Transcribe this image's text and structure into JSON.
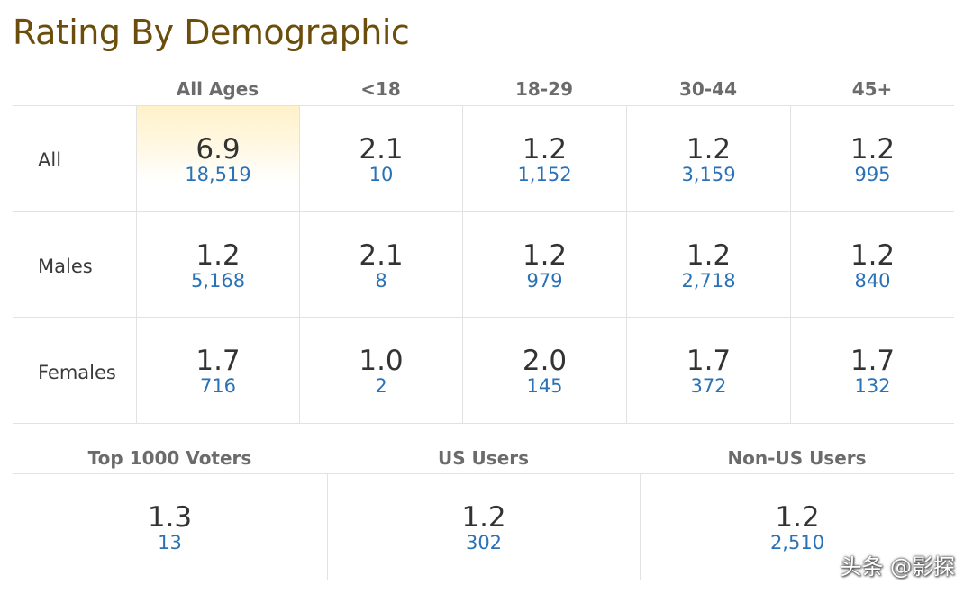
{
  "title": "Rating By Demographic",
  "age_headers": [
    "All Ages",
    "<18",
    "18-29",
    "30-44",
    "45+"
  ],
  "rows": [
    {
      "label": "All",
      "cells": [
        {
          "rating": "6.9",
          "votes": "18,519"
        },
        {
          "rating": "2.1",
          "votes": "10"
        },
        {
          "rating": "1.2",
          "votes": "1,152"
        },
        {
          "rating": "1.2",
          "votes": "3,159"
        },
        {
          "rating": "1.2",
          "votes": "995"
        }
      ]
    },
    {
      "label": "Males",
      "cells": [
        {
          "rating": "1.2",
          "votes": "5,168"
        },
        {
          "rating": "2.1",
          "votes": "8"
        },
        {
          "rating": "1.2",
          "votes": "979"
        },
        {
          "rating": "1.2",
          "votes": "2,718"
        },
        {
          "rating": "1.2",
          "votes": "840"
        }
      ]
    },
    {
      "label": "Females",
      "cells": [
        {
          "rating": "1.7",
          "votes": "716"
        },
        {
          "rating": "1.0",
          "votes": "2"
        },
        {
          "rating": "2.0",
          "votes": "145"
        },
        {
          "rating": "1.7",
          "votes": "372"
        },
        {
          "rating": "1.7",
          "votes": "132"
        }
      ]
    }
  ],
  "group_headers": [
    "Top 1000 Voters",
    "US Users",
    "Non-US Users"
  ],
  "groups": [
    {
      "rating": "1.3",
      "votes": "13"
    },
    {
      "rating": "1.2",
      "votes": "302"
    },
    {
      "rating": "1.2",
      "votes": "2,510"
    }
  ],
  "watermark": "头条 @影探",
  "colors": {
    "title": "#6b4e0b",
    "header": "#6b6b6b",
    "rating": "#333333",
    "votes_link": "#2a72b5",
    "grid": "#e2e2e2",
    "highlight": "#fff1c9"
  }
}
